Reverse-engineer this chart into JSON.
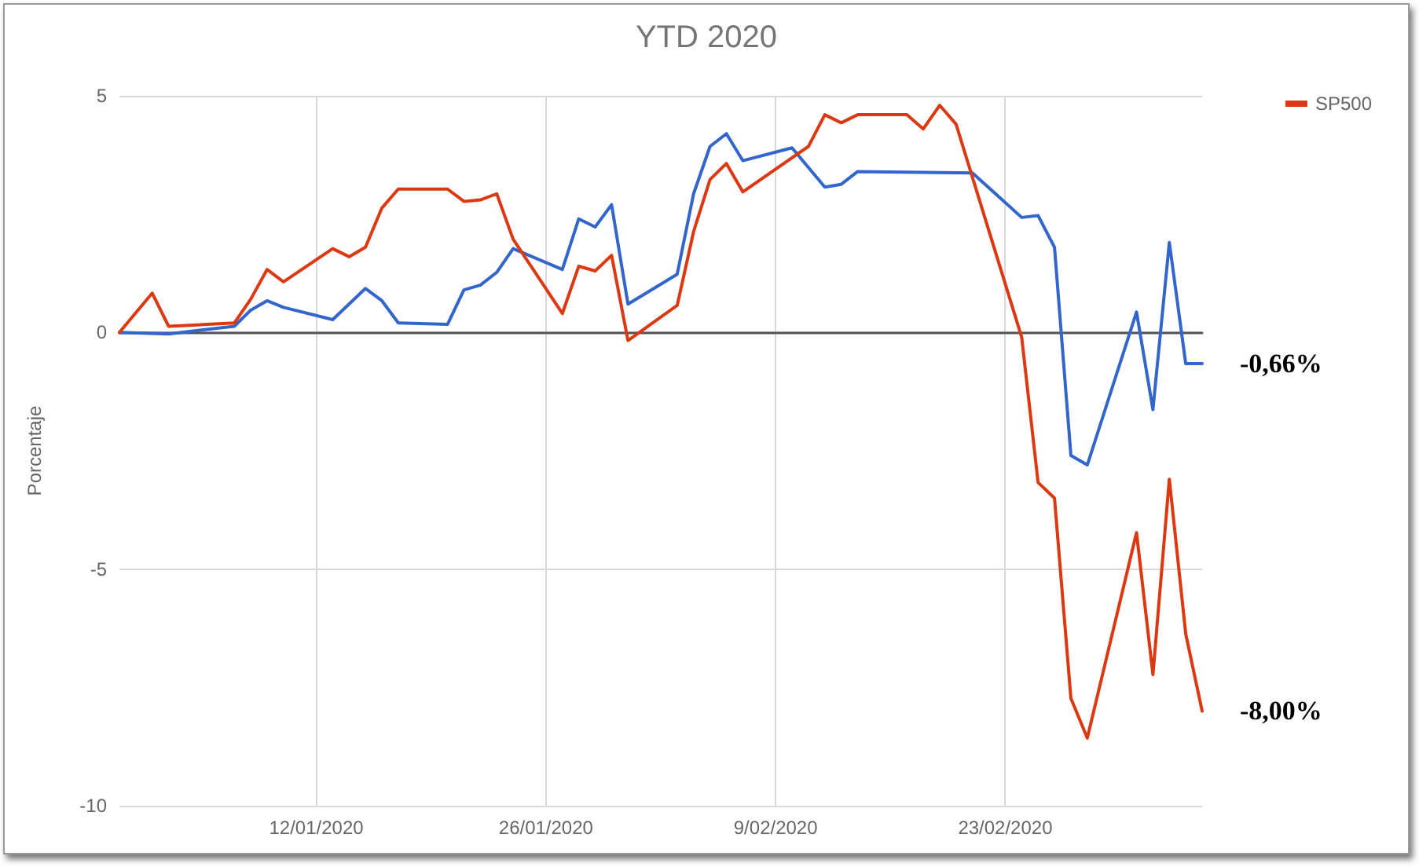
{
  "chart_data": {
    "type": "line",
    "title": "YTD 2020",
    "ylabel": "Porcentaje",
    "xlim": [
      "2019-12-31",
      "2020-03-06"
    ],
    "xticks": [
      {
        "value": "2020-01-12",
        "label": "12/01/2020"
      },
      {
        "value": "2020-01-26",
        "label": "26/01/2020"
      },
      {
        "value": "2020-02-09",
        "label": "9/02/2020"
      },
      {
        "value": "2020-02-23",
        "label": "23/02/2020"
      }
    ],
    "ylim": [
      -10,
      5
    ],
    "yticks": [
      -10,
      -5,
      0,
      5
    ],
    "grid": true,
    "legend": "top right",
    "marker": "none",
    "line_style": "solid",
    "series": [
      {
        "color": "#3366cc",
        "x": [
          "2019-12-31",
          "2020-01-03",
          "2020-01-07",
          "2020-01-08",
          "2020-01-09",
          "2020-01-10",
          "2020-01-13",
          "2020-01-15",
          "2020-01-16",
          "2020-01-17",
          "2020-01-20",
          "2020-01-21",
          "2020-01-22",
          "2020-01-23",
          "2020-01-24",
          "2020-01-27",
          "2020-01-28",
          "2020-01-29",
          "2020-01-30",
          "2020-01-31",
          "2020-02-03",
          "2020-02-04",
          "2020-02-05",
          "2020-02-06",
          "2020-02-07",
          "2020-02-10",
          "2020-02-12",
          "2020-02-13",
          "2020-02-14",
          "2020-02-21",
          "2020-02-24",
          "2020-02-25",
          "2020-02-26",
          "2020-02-27",
          "2020-02-28",
          "2020-03-02",
          "2020-03-03",
          "2020-03-04",
          "2020-03-05",
          "2020-03-06"
        ],
        "values": [
          0,
          -0.03,
          0.13,
          0.47,
          0.67,
          0.53,
          0.27,
          0.93,
          0.67,
          0.2,
          0.17,
          0.9,
          1.0,
          1.27,
          1.77,
          1.33,
          2.4,
          2.23,
          2.7,
          0.6,
          1.23,
          2.93,
          3.93,
          4.2,
          3.63,
          3.9,
          3.07,
          3.13,
          3.4,
          3.37,
          2.43,
          2.47,
          1.8,
          -2.6,
          -2.8,
          0.43,
          -1.63,
          1.9,
          -0.66,
          -0.66
        ]
      },
      {
        "name": "SP500",
        "color": "#dc3912",
        "x": [
          "2019-12-31",
          "2020-01-02",
          "2020-01-03",
          "2020-01-07",
          "2020-01-08",
          "2020-01-09",
          "2020-01-10",
          "2020-01-13",
          "2020-01-14",
          "2020-01-15",
          "2020-01-16",
          "2020-01-17",
          "2020-01-20",
          "2020-01-21",
          "2020-01-22",
          "2020-01-23",
          "2020-01-24",
          "2020-01-27",
          "2020-01-28",
          "2020-01-29",
          "2020-01-30",
          "2020-01-31",
          "2020-02-03",
          "2020-02-04",
          "2020-02-05",
          "2020-02-06",
          "2020-02-07",
          "2020-02-11",
          "2020-02-12",
          "2020-02-13",
          "2020-02-14",
          "2020-02-17",
          "2020-02-18",
          "2020-02-19",
          "2020-02-20",
          "2020-02-24",
          "2020-02-25",
          "2020-02-26",
          "2020-02-27",
          "2020-02-28",
          "2020-03-02",
          "2020-03-03",
          "2020-03-04",
          "2020-03-05",
          "2020-03-06"
        ],
        "values": [
          0,
          0.83,
          0.13,
          0.2,
          0.7,
          1.33,
          1.07,
          1.77,
          1.6,
          1.8,
          2.63,
          3.03,
          3.03,
          2.77,
          2.8,
          2.93,
          1.97,
          0.4,
          1.4,
          1.3,
          1.63,
          -0.17,
          0.57,
          2.13,
          3.23,
          3.57,
          2.97,
          3.93,
          4.6,
          4.43,
          4.6,
          4.6,
          4.3,
          4.8,
          4.4,
          -0.1,
          -3.17,
          -3.5,
          -7.73,
          -8.57,
          -4.23,
          -7.23,
          -3.1,
          -6.37,
          -8
        ]
      }
    ],
    "annotations": [
      {
        "text": "-0,66%",
        "x": "2020-03-06",
        "y": -0.66
      },
      {
        "text": "-8,00%",
        "x": "2020-03-06",
        "y": -8
      }
    ]
  }
}
